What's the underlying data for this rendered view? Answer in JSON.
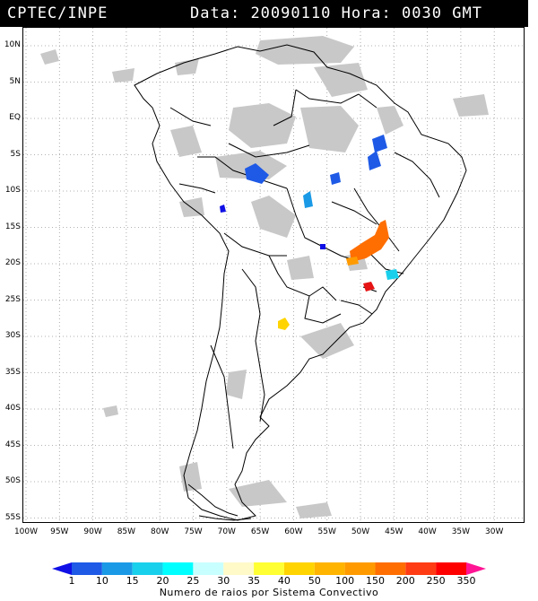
{
  "header": {
    "source": "CPTEC/INPE",
    "data_label": "Data:",
    "date": "20090110",
    "hora_label": "Hora:",
    "time": "0030",
    "tz": "GMT"
  },
  "map": {
    "lat_ticks": [
      "10N",
      "5N",
      "EQ",
      "5S",
      "10S",
      "15S",
      "20S",
      "25S",
      "30S",
      "35S",
      "40S",
      "45S",
      "50S",
      "55S"
    ],
    "lon_ticks": [
      "100W",
      "95W",
      "90W",
      "85W",
      "80W",
      "75W",
      "70W",
      "65W",
      "60W",
      "55W",
      "50W",
      "45W",
      "40W",
      "35W",
      "30W"
    ],
    "grid": "dotted",
    "cloud_color": "#c0c0c0",
    "border_color": "#000000"
  },
  "legend": {
    "values": [
      "1",
      "10",
      "15",
      "20",
      "25",
      "30",
      "35",
      "40",
      "50",
      "100",
      "150",
      "200",
      "250",
      "350"
    ],
    "colors": [
      "#1010e6",
      "#1e5ae6",
      "#1a9ae6",
      "#19d0ec",
      "#00ffff",
      "#c8ffff",
      "#fffac8",
      "#ffff33",
      "#ffd400",
      "#ffb400",
      "#ff9b00",
      "#ff6e00",
      "#ff3c14",
      "#ff0000",
      "#ff1493"
    ],
    "title": "Numero de raios por Sistema Convectivo"
  }
}
